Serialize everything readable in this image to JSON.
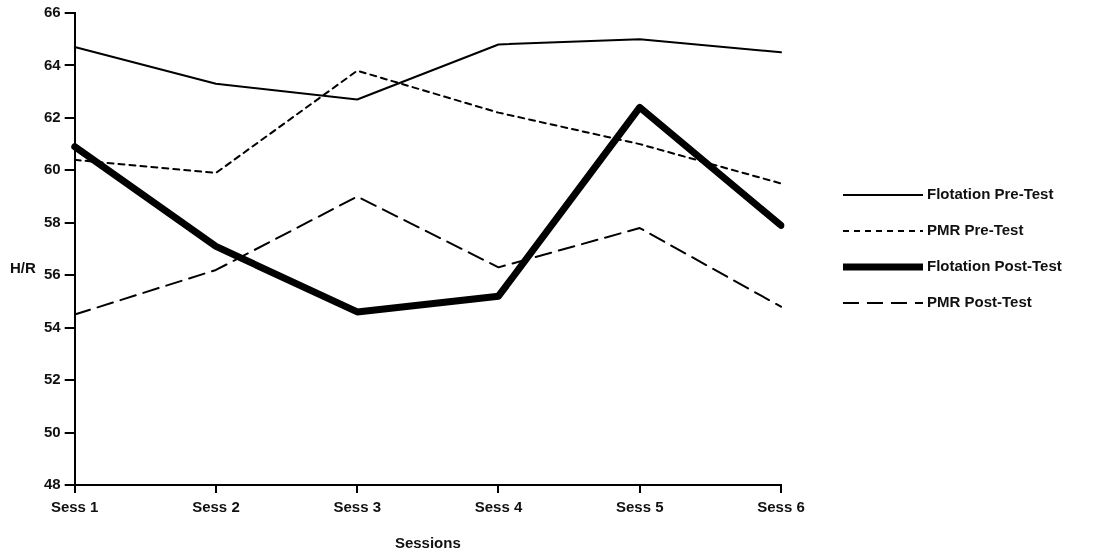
{
  "chart_data": {
    "type": "line",
    "xlabel": "Sessions",
    "ylabel": "H/R",
    "categories": [
      "Sess 1",
      "Sess 2",
      "Sess 3",
      "Sess 4",
      "Sess 5",
      "Sess 6"
    ],
    "ylim": [
      48,
      66
    ],
    "yticks": [
      48,
      50,
      52,
      54,
      56,
      58,
      60,
      62,
      64,
      66
    ],
    "grid": false,
    "legend": "right",
    "marker": "none",
    "series": [
      {
        "name": "Flotation Pre-Test",
        "color": "#000000",
        "line_style": "solid",
        "values": [
          64.7,
          63.3,
          62.7,
          64.8,
          65.0,
          64.5
        ]
      },
      {
        "name": "PMR Pre-Test",
        "color": "#000000",
        "line_style": "dotted",
        "values": [
          60.4,
          59.9,
          63.8,
          62.2,
          61.0,
          59.5
        ]
      },
      {
        "name": "Flotation Post-Test",
        "color": "#000000",
        "line_style": "solid",
        "values": [
          60.9,
          57.1,
          54.6,
          55.2,
          62.4,
          57.9
        ]
      },
      {
        "name": "PMR Post-Test",
        "color": "#000000",
        "line_style": "dashed",
        "values": [
          54.5,
          56.2,
          59.0,
          56.3,
          57.8,
          54.8
        ]
      }
    ]
  }
}
